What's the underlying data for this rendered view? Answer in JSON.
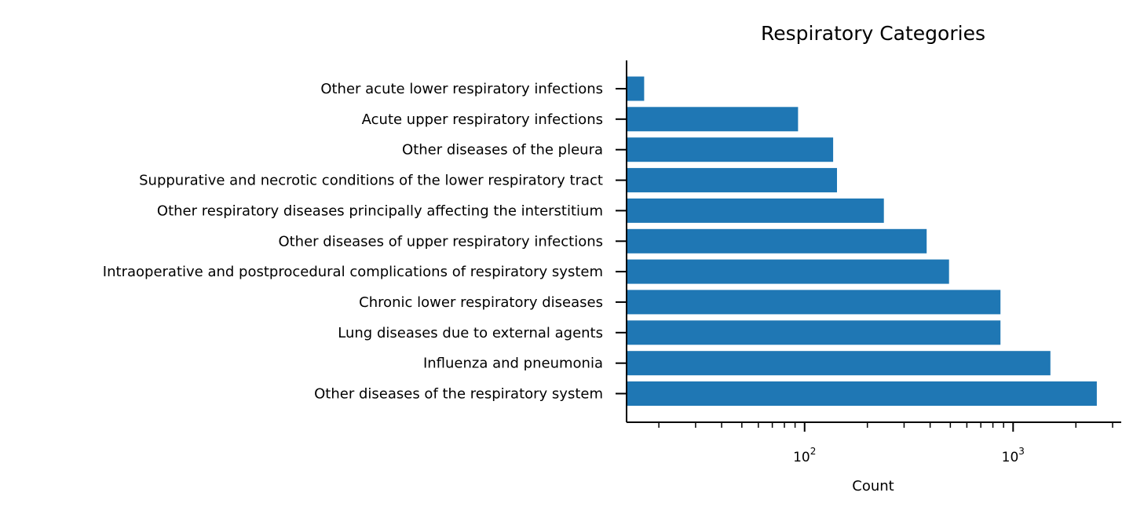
{
  "chart_data": {
    "type": "bar",
    "orientation": "horizontal",
    "title": "Respiratory Categories",
    "xlabel": "Count",
    "ylabel": "",
    "xscale": "log",
    "xlim": [
      14,
      3300
    ],
    "grid": false,
    "legend": "none",
    "bar_color": "#1f77b4",
    "x_ticks": [
      {
        "value": 100,
        "base": "10",
        "exponent": "2"
      },
      {
        "value": 1000,
        "base": "10",
        "exponent": "3"
      }
    ],
    "categories": [
      "Other acute lower respiratory infections",
      "Acute upper respiratory infections",
      "Other diseases of the pleura",
      "Suppurative and necrotic conditions of the lower respiratory tract",
      "Other respiratory diseases principally affecting the interstitium",
      "Other diseases of upper respiratory infections",
      "Intraoperative and postprocedural complications of respiratory system",
      "Chronic lower respiratory diseases",
      "Lung diseases due to external agents",
      "Influenza and pneumonia",
      "Other diseases of the respiratory system"
    ],
    "values": [
      17,
      93,
      137,
      143,
      240,
      385,
      493,
      870,
      870,
      1510,
      2520
    ]
  }
}
